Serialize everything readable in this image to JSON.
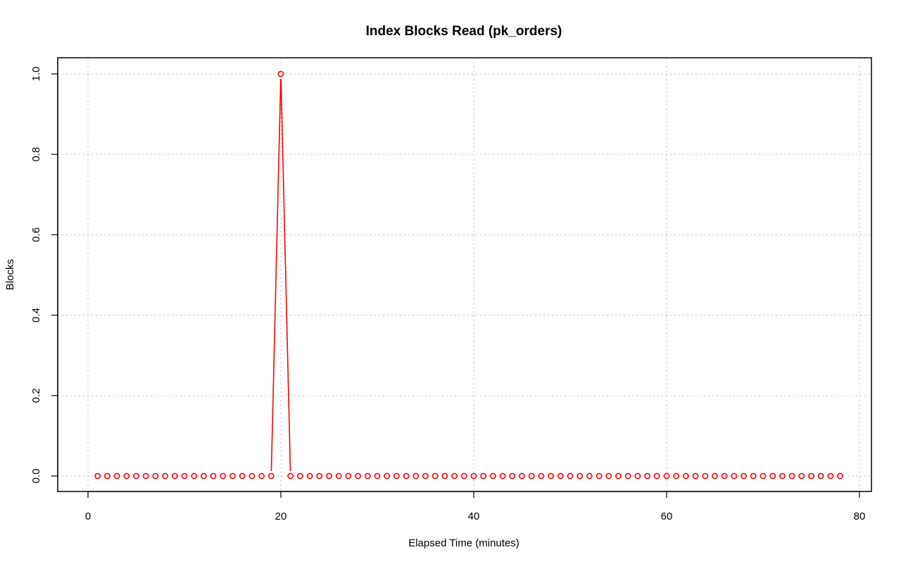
{
  "chart_data": {
    "type": "line",
    "title": "Index Blocks Read (pk_orders)",
    "xlabel": "Elapsed Time (minutes)",
    "ylabel": "Blocks",
    "xlim": [
      0,
      80
    ],
    "ylim": [
      0,
      1
    ],
    "xticks": [
      "0",
      "20",
      "40",
      "60",
      "80"
    ],
    "yticks": [
      "0.0",
      "0.2",
      "0.4",
      "0.6",
      "0.8",
      "1.0"
    ],
    "grid": true,
    "line_style": "both (points and lines)",
    "series": [
      {
        "color": "#ff0000",
        "x": [
          1,
          2,
          3,
          4,
          5,
          6,
          7,
          8,
          9,
          10,
          11,
          12,
          13,
          14,
          15,
          16,
          17,
          18,
          19,
          20,
          21,
          22,
          23,
          24,
          25,
          26,
          27,
          28,
          29,
          30,
          31,
          32,
          33,
          34,
          35,
          36,
          37,
          38,
          39,
          40,
          41,
          42,
          43,
          44,
          45,
          46,
          47,
          48,
          49,
          50,
          51,
          52,
          53,
          54,
          55,
          56,
          57,
          58,
          59,
          60,
          61,
          62,
          63,
          64,
          65,
          66,
          67,
          68,
          69,
          70,
          71,
          72,
          73,
          74,
          75,
          76,
          77,
          78
        ],
        "y": [
          0,
          0,
          0,
          0,
          0,
          0,
          0,
          0,
          0,
          0,
          0,
          0,
          0,
          0,
          0,
          0,
          0,
          0,
          0,
          1,
          0,
          0,
          0,
          0,
          0,
          0,
          0,
          0,
          0,
          0,
          0,
          0,
          0,
          0,
          0,
          0,
          0,
          0,
          0,
          0,
          0,
          0,
          0,
          0,
          0,
          0,
          0,
          0,
          0,
          0,
          0,
          0,
          0,
          0,
          0,
          0,
          0,
          0,
          0,
          0,
          0,
          0,
          0,
          0,
          0,
          0,
          0,
          0,
          0,
          0,
          0,
          0,
          0,
          0,
          0,
          0,
          0,
          0
        ]
      }
    ]
  }
}
